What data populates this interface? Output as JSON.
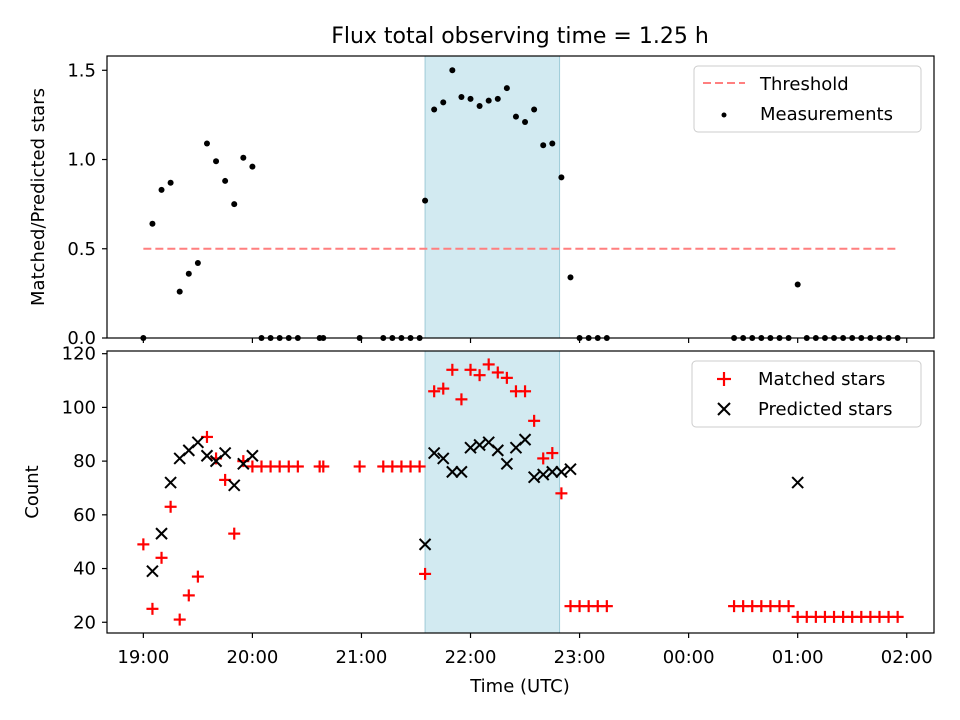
{
  "title": "Flux total observing time = 1.25 h",
  "chart_data": [
    {
      "type": "scatter",
      "panel": "top",
      "title": "Flux total observing time = 1.25 h",
      "ylabel": "Matched/Predicted stars",
      "xlabel": "",
      "xlim": [
        "18:40",
        "02:15"
      ],
      "ylim": [
        0,
        1.58
      ],
      "yticks": [
        0.0,
        0.5,
        1.0,
        1.5
      ],
      "ytick_labels": [
        "0.0",
        "0.5",
        "1.0",
        "1.5"
      ],
      "grid": false,
      "legend_position": "top-right",
      "shaded_interval": {
        "start": "21:35",
        "end": "22:49",
        "color": "#add8e6"
      },
      "threshold": {
        "name": "Threshold",
        "value": 0.5,
        "x_start": "19:00",
        "x_end": "01:55",
        "color": "#ff7f7f"
      },
      "series": [
        {
          "name": "Measurements",
          "color": "#000000",
          "marker": "dot",
          "points": [
            [
              "19:00",
              0.0
            ],
            [
              "19:05",
              0.64
            ],
            [
              "19:10",
              0.83
            ],
            [
              "19:15",
              0.87
            ],
            [
              "19:20",
              0.26
            ],
            [
              "19:25",
              0.36
            ],
            [
              "19:30",
              0.42
            ],
            [
              "19:35",
              1.09
            ],
            [
              "19:40",
              0.99
            ],
            [
              "19:45",
              0.88
            ],
            [
              "19:50",
              0.75
            ],
            [
              "19:55",
              1.01
            ],
            [
              "20:00",
              0.96
            ],
            [
              "20:05",
              0.0
            ],
            [
              "20:10",
              0.0
            ],
            [
              "20:15",
              0.0
            ],
            [
              "20:20",
              0.0
            ],
            [
              "20:25",
              0.0
            ],
            [
              "20:37",
              0.0
            ],
            [
              "20:39",
              0.0
            ],
            [
              "20:59",
              0.0
            ],
            [
              "21:12",
              0.0
            ],
            [
              "21:17",
              0.0
            ],
            [
              "21:22",
              0.0
            ],
            [
              "21:27",
              0.0
            ],
            [
              "21:32",
              0.0
            ],
            [
              "21:35",
              0.77
            ],
            [
              "21:40",
              1.28
            ],
            [
              "21:45",
              1.32
            ],
            [
              "21:50",
              1.5
            ],
            [
              "21:55",
              1.35
            ],
            [
              "22:00",
              1.34
            ],
            [
              "22:05",
              1.3
            ],
            [
              "22:10",
              1.33
            ],
            [
              "22:15",
              1.34
            ],
            [
              "22:20",
              1.4
            ],
            [
              "22:25",
              1.24
            ],
            [
              "22:30",
              1.21
            ],
            [
              "22:35",
              1.28
            ],
            [
              "22:40",
              1.08
            ],
            [
              "22:45",
              1.09
            ],
            [
              "22:50",
              0.9
            ],
            [
              "22:55",
              0.34
            ],
            [
              "23:00",
              0.0
            ],
            [
              "23:05",
              0.0
            ],
            [
              "23:10",
              0.0
            ],
            [
              "23:15",
              0.0
            ],
            [
              "00:25",
              0.0
            ],
            [
              "00:30",
              0.0
            ],
            [
              "00:35",
              0.0
            ],
            [
              "00:40",
              0.0
            ],
            [
              "00:45",
              0.0
            ],
            [
              "00:50",
              0.0
            ],
            [
              "00:55",
              0.0
            ],
            [
              "01:00",
              0.3
            ],
            [
              "01:05",
              0.0
            ],
            [
              "01:10",
              0.0
            ],
            [
              "01:15",
              0.0
            ],
            [
              "01:20",
              0.0
            ],
            [
              "01:25",
              0.0
            ],
            [
              "01:30",
              0.0
            ],
            [
              "01:35",
              0.0
            ],
            [
              "01:40",
              0.0
            ],
            [
              "01:45",
              0.0
            ],
            [
              "01:50",
              0.0
            ],
            [
              "01:55",
              0.0
            ]
          ]
        }
      ]
    },
    {
      "type": "scatter",
      "panel": "bottom",
      "title": "",
      "xlabel": "Time (UTC)",
      "ylabel": "Count",
      "xlim": [
        "18:40",
        "02:15"
      ],
      "ylim": [
        16,
        121
      ],
      "xticks": [
        "19:00",
        "20:00",
        "21:00",
        "22:00",
        "23:00",
        "00:00",
        "01:00",
        "02:00"
      ],
      "yticks": [
        20,
        40,
        60,
        80,
        100,
        120
      ],
      "grid": false,
      "legend_position": "top-right",
      "shaded_interval": {
        "start": "21:35",
        "end": "22:49",
        "color": "#add8e6"
      },
      "series": [
        {
          "name": "Matched stars",
          "color": "#ff0000",
          "marker": "plus",
          "points": [
            [
              "19:00",
              49
            ],
            [
              "19:05",
              25
            ],
            [
              "19:10",
              44
            ],
            [
              "19:15",
              63
            ],
            [
              "19:20",
              21
            ],
            [
              "19:25",
              30
            ],
            [
              "19:30",
              37
            ],
            [
              "19:35",
              89
            ],
            [
              "19:40",
              81
            ],
            [
              "19:45",
              73
            ],
            [
              "19:50",
              53
            ],
            [
              "19:55",
              80
            ],
            [
              "20:00",
              78
            ],
            [
              "20:05",
              78
            ],
            [
              "20:10",
              78
            ],
            [
              "20:15",
              78
            ],
            [
              "20:20",
              78
            ],
            [
              "20:25",
              78
            ],
            [
              "20:37",
              78
            ],
            [
              "20:39",
              78
            ],
            [
              "20:59",
              78
            ],
            [
              "21:12",
              78
            ],
            [
              "21:17",
              78
            ],
            [
              "21:22",
              78
            ],
            [
              "21:27",
              78
            ],
            [
              "21:32",
              78
            ],
            [
              "21:35",
              38
            ],
            [
              "21:40",
              106
            ],
            [
              "21:45",
              107
            ],
            [
              "21:50",
              114
            ],
            [
              "21:55",
              103
            ],
            [
              "22:00",
              114
            ],
            [
              "22:05",
              112
            ],
            [
              "22:10",
              116
            ],
            [
              "22:15",
              113
            ],
            [
              "22:20",
              111
            ],
            [
              "22:25",
              106
            ],
            [
              "22:30",
              106
            ],
            [
              "22:35",
              95
            ],
            [
              "22:40",
              81
            ],
            [
              "22:45",
              83
            ],
            [
              "22:50",
              68
            ],
            [
              "22:55",
              26
            ],
            [
              "23:00",
              26
            ],
            [
              "23:05",
              26
            ],
            [
              "23:10",
              26
            ],
            [
              "23:15",
              26
            ],
            [
              "00:25",
              26
            ],
            [
              "00:30",
              26
            ],
            [
              "00:35",
              26
            ],
            [
              "00:40",
              26
            ],
            [
              "00:45",
              26
            ],
            [
              "00:50",
              26
            ],
            [
              "00:55",
              26
            ],
            [
              "01:00",
              22
            ],
            [
              "01:05",
              22
            ],
            [
              "01:10",
              22
            ],
            [
              "01:15",
              22
            ],
            [
              "01:20",
              22
            ],
            [
              "01:25",
              22
            ],
            [
              "01:30",
              22
            ],
            [
              "01:35",
              22
            ],
            [
              "01:40",
              22
            ],
            [
              "01:45",
              22
            ],
            [
              "01:50",
              22
            ],
            [
              "01:55",
              22
            ]
          ]
        },
        {
          "name": "Predicted stars",
          "color": "#000000",
          "marker": "x",
          "points": [
            [
              "19:05",
              39
            ],
            [
              "19:10",
              53
            ],
            [
              "19:15",
              72
            ],
            [
              "19:20",
              81
            ],
            [
              "19:25",
              84
            ],
            [
              "19:30",
              87
            ],
            [
              "19:35",
              82
            ],
            [
              "19:40",
              80
            ],
            [
              "19:45",
              83
            ],
            [
              "19:50",
              71
            ],
            [
              "19:55",
              79
            ],
            [
              "20:00",
              82
            ],
            [
              "21:35",
              49
            ],
            [
              "21:40",
              83
            ],
            [
              "21:45",
              81
            ],
            [
              "21:50",
              76
            ],
            [
              "21:55",
              76
            ],
            [
              "22:00",
              85
            ],
            [
              "22:05",
              86
            ],
            [
              "22:10",
              87
            ],
            [
              "22:15",
              84
            ],
            [
              "22:20",
              79
            ],
            [
              "22:25",
              85
            ],
            [
              "22:30",
              88
            ],
            [
              "22:35",
              74
            ],
            [
              "22:40",
              75
            ],
            [
              "22:45",
              76
            ],
            [
              "22:50",
              76
            ],
            [
              "22:55",
              77
            ],
            [
              "01:00",
              72
            ]
          ]
        }
      ]
    }
  ]
}
